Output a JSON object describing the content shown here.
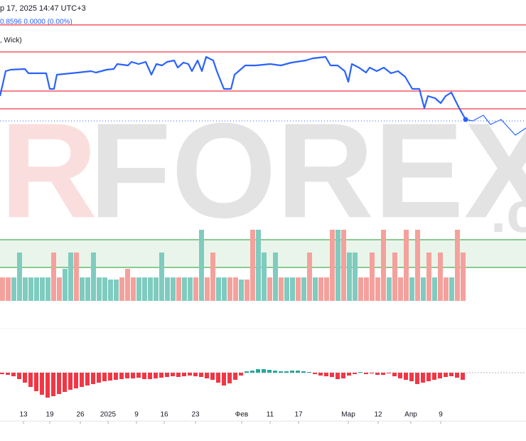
{
  "chart_data": {
    "type": "line",
    "header": "р 17, 2025 14:47 UTC+3",
    "price_info": "0.8596  0.0000 (0.00%)",
    "style_info": ", Wick)",
    "watermark": {
      "left": "R",
      "main": "FOREX",
      "right": ".c"
    },
    "xlim": [
      0,
      740
    ],
    "ylim": [
      -220,
      200
    ],
    "xticks": [
      {
        "value": 33,
        "label": "13"
      },
      {
        "value": 70,
        "label": "19"
      },
      {
        "value": 113,
        "label": "26"
      },
      {
        "value": 152,
        "label": "2025"
      },
      {
        "value": 192,
        "label": "9"
      },
      {
        "value": 231,
        "label": "16"
      },
      {
        "value": 275,
        "label": "23"
      },
      {
        "value": 340,
        "label": "Фев"
      },
      {
        "value": 380,
        "label": "11"
      },
      {
        "value": 420,
        "label": "17"
      },
      {
        "value": 490,
        "label": "Мар"
      },
      {
        "value": 532,
        "label": "12"
      },
      {
        "value": 578,
        "label": "Апр"
      },
      {
        "value": 620,
        "label": "9"
      }
    ],
    "series": [
      {
        "color": "#2962ff",
        "x": [
          0,
          8,
          15,
          35,
          40,
          65,
          70,
          76,
          80,
          110,
          128,
          135,
          150,
          160,
          165,
          180,
          185,
          195,
          205,
          213,
          220,
          228,
          235,
          245,
          250,
          258,
          265,
          270,
          278,
          284,
          290,
          300,
          305,
          315,
          325,
          330,
          345,
          360,
          380,
          395,
          410,
          430,
          440,
          458,
          465,
          475,
          485,
          490,
          495,
          505,
          515,
          520,
          530,
          540,
          550,
          560,
          570,
          580,
          590,
          597,
          602,
          612,
          620,
          627,
          635,
          645,
          655
        ],
        "values": [
          65,
          100,
          102,
          103,
          97,
          97,
          75,
          75,
          95,
          98,
          100,
          98,
          102,
          103,
          110,
          108,
          113,
          110,
          113,
          95,
          110,
          108,
          113,
          115,
          105,
          112,
          110,
          100,
          115,
          100,
          120,
          115,
          100,
          75,
          75,
          95,
          108,
          108,
          110,
          108,
          112,
          115,
          118,
          120,
          108,
          108,
          100,
          85,
          110,
          105,
          98,
          105,
          100,
          105,
          97,
          100,
          92,
          75,
          75,
          48,
          65,
          62,
          55,
          65,
          70,
          50,
          32
        ]
      },
      {
        "color": "#2962ff",
        "x": [
          655,
          665,
          680,
          690,
          705,
          725,
          740
        ],
        "values": [
          32,
          30,
          38,
          25,
          32,
          10,
          20
        ]
      }
    ],
    "levels": {
      "color": "#f23645",
      "values": [
        165,
        127,
        72,
        47
      ]
    },
    "last_price": {
      "color": "#2962ff",
      "value": 30
    },
    "zone": {
      "color": "#4caf50",
      "values": [
        -137,
        -176
      ]
    },
    "volume": {
      "ylim": [
        0,
        100
      ],
      "series": [
        {
          "color": "#7fcbbf",
          "values": [
            null,
            null,
            33,
            68,
            33,
            33,
            33,
            33,
            33,
            null,
            null,
            45,
            68,
            null,
            33,
            33,
            68,
            33,
            33,
            30,
            30,
            null,
            null,
            null,
            33,
            33,
            33,
            33,
            68,
            33,
            33,
            null,
            33,
            33,
            null,
            100,
            null,
            null,
            33,
            33,
            null,
            null,
            30,
            null,
            null,
            100,
            68,
            null,
            68,
            null,
            33,
            33,
            null,
            33,
            null,
            33,
            null,
            null,
            null,
            100,
            null,
            68,
            68,
            null,
            null,
            null,
            null,
            null,
            33,
            null,
            null,
            null,
            33,
            null,
            33,
            null,
            33,
            null,
            null,
            33,
            null,
            null
          ]
        },
        {
          "color": "#f4a19c",
          "values": [
            33,
            33,
            null,
            null,
            null,
            null,
            null,
            null,
            null,
            68,
            33,
            null,
            null,
            68,
            null,
            null,
            null,
            null,
            null,
            null,
            null,
            33,
            45,
            33,
            null,
            null,
            null,
            null,
            null,
            null,
            null,
            33,
            null,
            null,
            33,
            null,
            33,
            68,
            null,
            null,
            33,
            33,
            null,
            30,
            100,
            null,
            null,
            33,
            null,
            33,
            null,
            null,
            33,
            null,
            68,
            null,
            33,
            33,
            100,
            null,
            100,
            null,
            null,
            33,
            33,
            68,
            33,
            100,
            null,
            68,
            33,
            100,
            null,
            100,
            null,
            68,
            null,
            68,
            33,
            null,
            100,
            68
          ]
        }
      ]
    },
    "oscillator": {
      "ylim": [
        -40,
        40
      ],
      "neg_color": "#f23645",
      "pos_color": "#26a69a",
      "values": [
        -2,
        -3,
        -5,
        -9,
        -14,
        -20,
        -26,
        -31,
        -35,
        -33,
        -30,
        -27,
        -24,
        -22,
        -20,
        -18,
        -16,
        -14,
        -12,
        -11,
        -10,
        -9,
        -8,
        -8,
        -7,
        -9,
        -9,
        -8,
        -7,
        -6,
        -5,
        -6,
        -5,
        -4,
        -5,
        -6,
        -8,
        -10,
        -14,
        -18,
        -15,
        -10,
        -4,
        2,
        3,
        5,
        5,
        4,
        3,
        2,
        2,
        3,
        3,
        2,
        1,
        -2,
        -4,
        -5,
        -6,
        -9,
        -8,
        -4,
        -2,
        1,
        -2,
        -1,
        -3,
        -3,
        -1,
        -5,
        -8,
        -10,
        -12,
        -16,
        -14,
        -12,
        -10,
        -8,
        -6,
        -5,
        -7,
        -10
      ]
    }
  }
}
